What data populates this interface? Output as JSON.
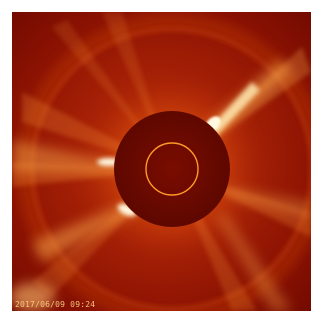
{
  "image": {
    "description": "LASCO coronagraph image showing the solar corona around an occulting disk with a sun circle outline",
    "colors": {
      "background": "#7a0c00",
      "corona_glow": "#ffb050",
      "streamer": "#fff2c8",
      "occulter": "#6e0a00",
      "sun_outline": "#ff9a2a"
    }
  },
  "overlay": {
    "timestamp": "2017/06/09 09:24"
  }
}
